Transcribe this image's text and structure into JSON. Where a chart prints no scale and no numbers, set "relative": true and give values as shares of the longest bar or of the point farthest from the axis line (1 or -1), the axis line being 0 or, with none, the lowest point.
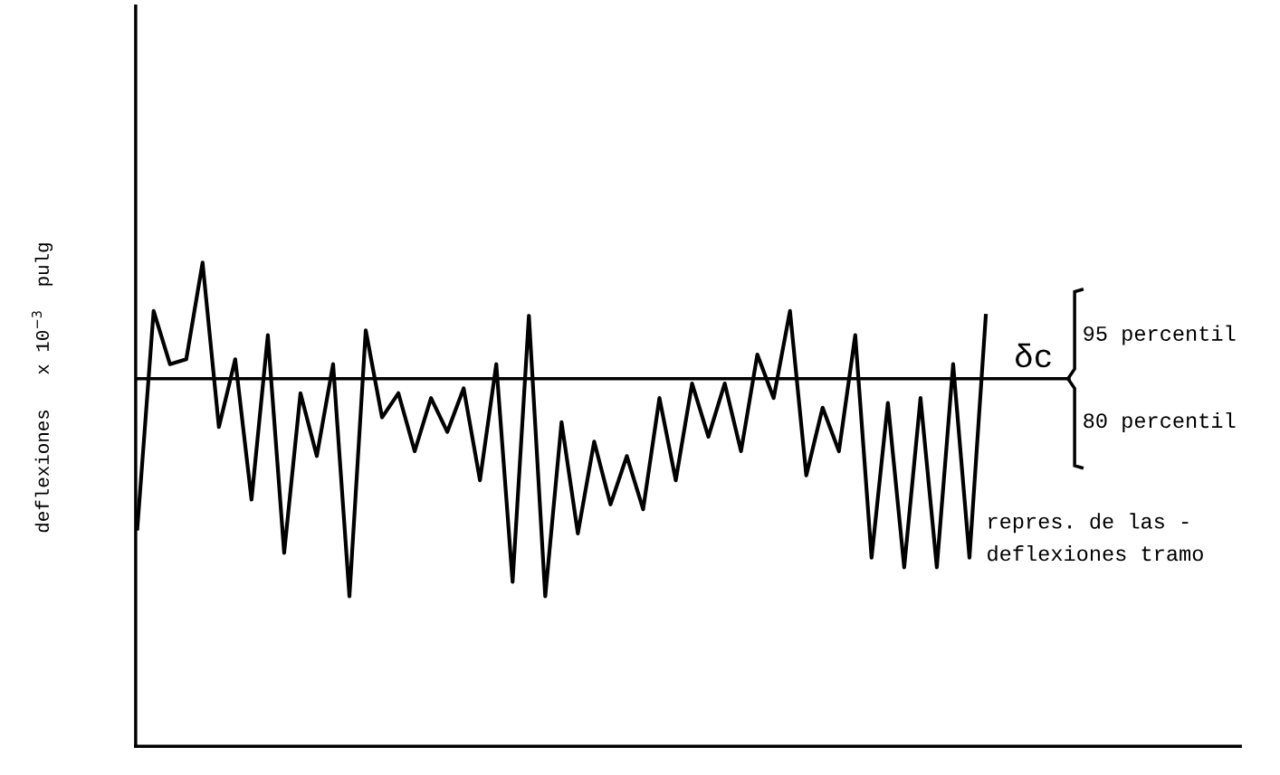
{
  "chart_data": {
    "type": "line",
    "relative": true,
    "ylabel": "deflexiones   x 10$^{−3}$  pulg",
    "categories": [
      null,
      null,
      null,
      null,
      null,
      null,
      null,
      null,
      null,
      null,
      null,
      null,
      null,
      null,
      null,
      null,
      null,
      null,
      null,
      null,
      null,
      null,
      null,
      null,
      null,
      null,
      null,
      null,
      null,
      null,
      null,
      null,
      null,
      null,
      null,
      null,
      null,
      null,
      null,
      null,
      null,
      null,
      null,
      null,
      null,
      null,
      null,
      null,
      null,
      null,
      null,
      null,
      null
    ],
    "series": [
      {
        "color": "#000000",
        "values": [
          0.45,
          0.9,
          0.79,
          0.8,
          1,
          0.66,
          0.8,
          0.51,
          0.85,
          0.4,
          0.73,
          0.6,
          0.79,
          0.31,
          0.86,
          0.68,
          0.73,
          0.61,
          0.72,
          0.65,
          0.74,
          0.55,
          0.79,
          0.34,
          0.89,
          0.31,
          0.67,
          0.44,
          0.63,
          0.5,
          0.6,
          0.49,
          0.72,
          0.55,
          0.75,
          0.64,
          0.75,
          0.61,
          0.81,
          0.72,
          0.9,
          0.56,
          0.7,
          0.61,
          0.85,
          0.39,
          0.71,
          0.37,
          0.72,
          0.37,
          0.79,
          0.39,
          0.89
        ]
      }
    ],
    "ref_lines": [
      {
        "axis": "y",
        "value": 0.76,
        "label": "δc",
        "color": "#000000"
      }
    ],
    "annotations": [
      "95 percentil",
      "80 percentil",
      "repres. de las -\ndeflexiones tramo"
    ],
    "grid": false,
    "marker": "none",
    "line_style": "solid"
  }
}
